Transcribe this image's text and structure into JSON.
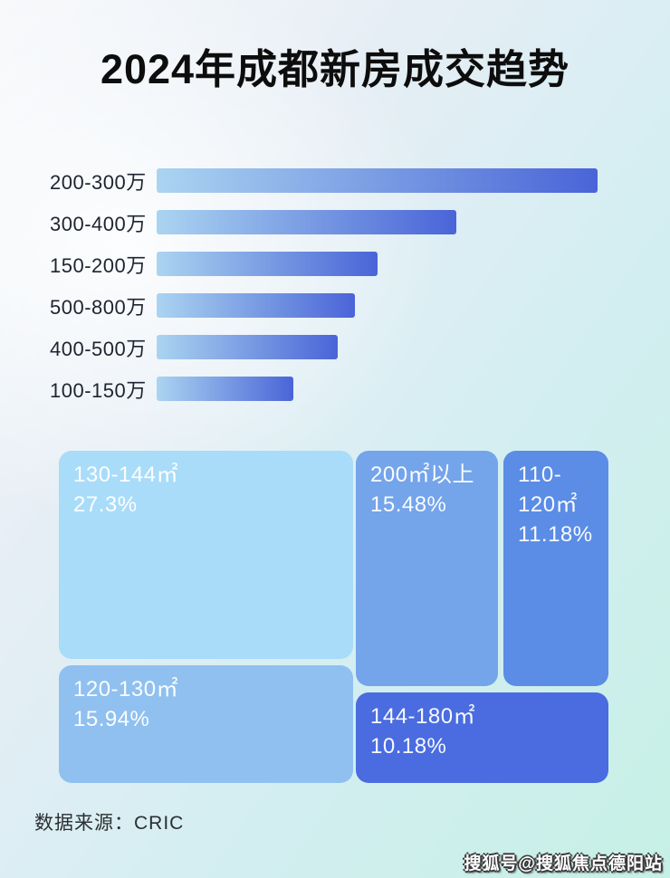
{
  "page": {
    "title": "2024年成都新房成交趋势"
  },
  "chart_data": [
    {
      "type": "bar",
      "title": "2024年成都新房成交趋势",
      "orientation": "horizontal",
      "categories": [
        "200-300万",
        "300-400万",
        "150-200万",
        "500-800万",
        "400-500万",
        "100-150万"
      ],
      "values": [
        100,
        68,
        50,
        45,
        41,
        31
      ],
      "values_note": "no numeric labels shown in image; values are relative bar lengths as % of longest bar",
      "value_labels_shown": false,
      "gridlines": false,
      "bar_gradient": [
        "#abd4f1",
        "#4a64d8"
      ]
    },
    {
      "type": "treemap",
      "title": "",
      "items": [
        {
          "label": "130-144㎡",
          "pct": "27.3%",
          "value": 27.3,
          "color": "#a9dcf8"
        },
        {
          "label": "200㎡以上",
          "pct": "15.48%",
          "value": 15.48,
          "color": "#74a4ea"
        },
        {
          "label": "110-120㎡",
          "pct": "11.18%",
          "value": 11.18,
          "color": "#5b8ce6"
        },
        {
          "label": "120-130㎡",
          "pct": "15.94%",
          "value": 15.94,
          "color": "#8fc0f0"
        },
        {
          "label": "144-180㎡",
          "pct": "10.18%",
          "value": 10.18,
          "color": "#4a6ce0"
        }
      ]
    }
  ],
  "footer": {
    "source_label": "数据来源：CRIC"
  },
  "watermark": {
    "text": "搜狐号@搜狐焦点德阳站"
  },
  "colors": {
    "background_top_left": "#f8f9fb",
    "background_bottom_right": "#c6f0e5",
    "title_text": "#0d0d0d",
    "bar_label_text": "#1f2430",
    "tile_text": "#ffffff"
  }
}
